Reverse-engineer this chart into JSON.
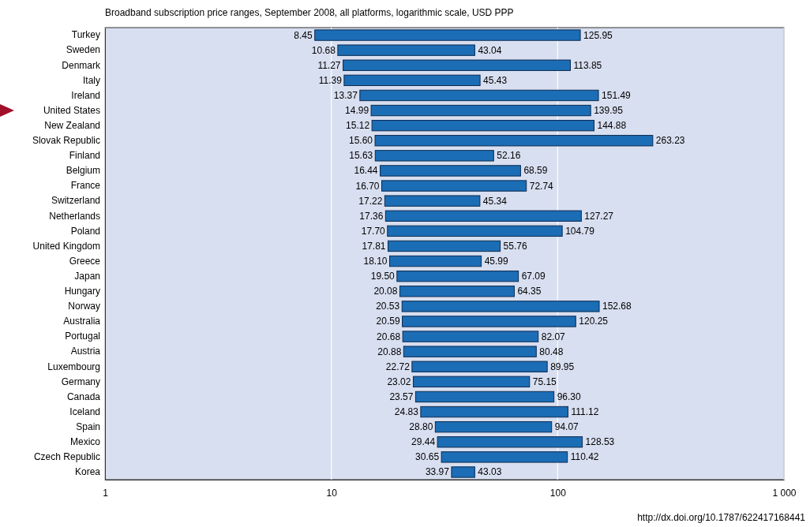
{
  "chart_data": {
    "type": "bar",
    "orientation": "horizontal",
    "log": "x",
    "grid": "x",
    "title": "Broadband subscription price ranges, September 2008, all platforms, logarithmic scale, USD PPP",
    "categories": [
      "Turkey",
      "Sweden",
      "Denmark",
      "Italy",
      "Ireland",
      "United States",
      "New Zealand",
      "Slovak Republic",
      "Finland",
      "Belgium",
      "France",
      "Switzerland",
      "Netherlands",
      "Poland",
      "United Kingdom",
      "Greece",
      "Japan",
      "Hungary",
      "Norway",
      "Australia",
      "Portugal",
      "Austria",
      "Luxembourg",
      "Germany",
      "Canada",
      "Iceland",
      "Spain",
      "Mexico",
      "Czech Republic",
      "Korea"
    ],
    "base": [
      8.45,
      10.68,
      11.27,
      11.39,
      13.37,
      14.99,
      15.12,
      15.6,
      15.63,
      16.44,
      16.7,
      17.22,
      17.36,
      17.7,
      17.81,
      18.1,
      19.5,
      20.08,
      20.53,
      20.59,
      20.68,
      20.88,
      22.72,
      23.02,
      23.57,
      24.83,
      28.8,
      29.44,
      30.65,
      33.97
    ],
    "values": [
      117.5,
      32.36,
      102.58,
      34.04,
      138.12,
      124.96,
      129.76,
      247.63,
      36.53,
      52.15,
      56.04,
      28.12,
      109.91,
      87.09,
      37.95,
      27.89,
      47.59,
      44.27,
      132.15,
      99.66,
      61.39,
      59.6,
      67.23,
      52.13,
      72.73,
      86.29,
      65.27,
      99.09,
      79.77,
      9.06
    ],
    "value_labels": [
      [
        "8.45",
        "125.95"
      ],
      [
        "10.68",
        "43.04"
      ],
      [
        "11.27",
        "113.85"
      ],
      [
        "11.39",
        "45.43"
      ],
      [
        "13.37",
        "151.49"
      ],
      [
        "14.99",
        "139.95"
      ],
      [
        "15.12",
        "144.88"
      ],
      [
        "15.60",
        "263.23"
      ],
      [
        "15.63",
        "52.16"
      ],
      [
        "16.44",
        "68.59"
      ],
      [
        "16.70",
        "72.74"
      ],
      [
        "17.22",
        "45.34"
      ],
      [
        "17.36",
        "127.27"
      ],
      [
        "17.70",
        "104.79"
      ],
      [
        "17.81",
        "55.76"
      ],
      [
        "18.10",
        "45.99"
      ],
      [
        "19.50",
        "67.09"
      ],
      [
        "20.08",
        "64.35"
      ],
      [
        "20.53",
        "152.68"
      ],
      [
        "20.59",
        "120.25"
      ],
      [
        "20.68",
        "82.07"
      ],
      [
        "20.88",
        "80.48"
      ],
      [
        "22.72",
        "89.95"
      ],
      [
        "23.02",
        "75.15"
      ],
      [
        "23.57",
        "96.30"
      ],
      [
        "24.83",
        "111.12"
      ],
      [
        "28.80",
        "94.07"
      ],
      [
        "29.44",
        "128.53"
      ],
      [
        "30.65",
        "110.42"
      ],
      [
        "33.97",
        "43.03"
      ]
    ],
    "color": "#1b6db5",
    "xlim": [
      1,
      1000
    ],
    "xticks": [
      1,
      10,
      100,
      {
        "value": 1000,
        "label": "1 000"
      }
    ],
    "annotations": [
      "http://dx.doi.org/10.1787/622417168441"
    ]
  }
}
